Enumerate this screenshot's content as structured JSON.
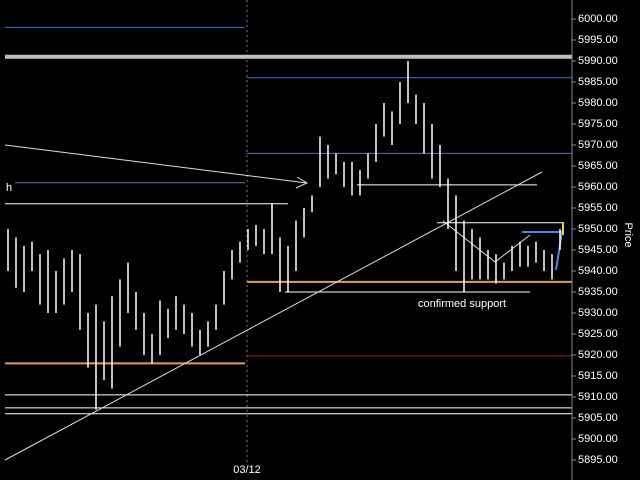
{
  "chart_data": {
    "type": "hl",
    "color": "#ffffff",
    "y_axis_label": "Price",
    "annotations": [
      "h",
      "confirmed support"
    ],
    "categories": [
      null,
      null,
      null,
      null,
      null,
      null,
      null,
      null,
      null,
      null,
      null,
      null,
      null,
      null,
      null,
      null,
      null,
      null,
      null,
      null,
      null,
      null,
      null,
      null,
      null,
      null,
      null,
      null,
      null,
      null,
      "03/12",
      null,
      null,
      null,
      null,
      null,
      null,
      null,
      null,
      null,
      null,
      null,
      null,
      null,
      null,
      null,
      null,
      null,
      null,
      null,
      null,
      null,
      null,
      null,
      null,
      null,
      null,
      null,
      null,
      null,
      null,
      null,
      null,
      null,
      null,
      null,
      null,
      null,
      null,
      null
    ],
    "high": [
      5950,
      5948,
      5946,
      5947,
      5944,
      5945,
      5940,
      5943,
      5945,
      5944,
      5930,
      5932,
      5928,
      5934,
      5938,
      5942,
      5935,
      5930,
      5925,
      5933,
      5931,
      5934,
      5932,
      5930,
      5926,
      5928,
      5932,
      5940,
      5945,
      5947,
      5950,
      5951,
      5950,
      5956,
      5948,
      5946,
      5952,
      5955,
      5958,
      5972,
      5970,
      5968,
      5966,
      5966,
      5964,
      5968,
      5975,
      5980,
      5978,
      5985,
      5990,
      5982,
      5980,
      5975,
      5970,
      5962,
      5958,
      5952,
      5950,
      5948,
      5945,
      5944,
      5942,
      5946,
      5947,
      5946,
      5947,
      5945,
      5944,
      5950
    ],
    "low": [
      5940,
      5936,
      5935,
      5940,
      5932,
      5930,
      5930,
      5932,
      5935,
      5926,
      5917,
      5907,
      5914,
      5912,
      5922,
      5930,
      5926,
      5920,
      5918,
      5920,
      5924,
      5926,
      5925,
      5922,
      5920,
      5922,
      5926,
      5932,
      5938,
      5942,
      5945,
      5946,
      5944,
      5944,
      5935,
      5935,
      5940,
      5948,
      5954,
      5960,
      5962,
      5963,
      5960,
      5958,
      5958,
      5962,
      5966,
      5972,
      5970,
      5975,
      5980,
      5975,
      5968,
      5962,
      5960,
      5950,
      5940,
      5935,
      5938,
      5938,
      5938,
      5937,
      5938,
      5940,
      5941,
      5941,
      5942,
      5940,
      5938,
      5945
    ],
    "levels": [
      {
        "value": 5991,
        "color": "#c0c0c0"
      },
      {
        "value": 5998,
        "color": "#3a6fd8"
      },
      {
        "value": 5986,
        "color": "#3a6fd8"
      },
      {
        "value": 5968,
        "color": "#8060c0"
      },
      {
        "value": 5961,
        "color": "#8060c0"
      },
      {
        "value": 5960.5,
        "color": "#ffffff"
      },
      {
        "value": 5956,
        "color": "#ffffff"
      },
      {
        "value": 5951.5,
        "color": "#ffffff"
      },
      {
        "value": 5937.4,
        "color": "#e0a050"
      },
      {
        "value": 5935,
        "color": "#ffffff"
      },
      {
        "value": 5919.8,
        "color": "#b02020"
      },
      {
        "value": 5918,
        "color": "#e0a050"
      },
      {
        "value": 5910.5,
        "color": "#ffffff"
      },
      {
        "value": 5907.4,
        "color": "#ffffff"
      },
      {
        "value": 5906,
        "color": "#ffffff"
      }
    ],
    "ylim": [
      5895,
      6000
    ],
    "yticks": [
      {
        "value": 5895,
        "label": "5895.00"
      },
      {
        "value": 5900,
        "label": "5900.00"
      },
      {
        "value": 5905,
        "label": "5905.00"
      },
      {
        "value": 5910,
        "label": "5910.00"
      },
      {
        "value": 5915,
        "label": "5915.00"
      },
      {
        "value": 5920,
        "label": "5920.00"
      },
      {
        "value": 5925,
        "label": "5925.00"
      },
      {
        "value": 5930,
        "label": "5930.00"
      },
      {
        "value": 5935,
        "label": "5935.00"
      },
      {
        "value": 5940,
        "label": "5940.00"
      },
      {
        "value": 5945,
        "label": "5945.00"
      },
      {
        "value": 5950,
        "label": "5950.00"
      },
      {
        "value": 5955,
        "label": "5955.00"
      },
      {
        "value": 5960,
        "label": "5960.00"
      },
      {
        "value": 5965,
        "label": "5965.00"
      },
      {
        "value": 5970,
        "label": "5970.00"
      },
      {
        "value": 5975,
        "label": "5975.00"
      },
      {
        "value": 5980,
        "label": "5980.00"
      },
      {
        "value": 5985,
        "label": "5985.00"
      },
      {
        "value": 5990,
        "label": "5990.00"
      },
      {
        "value": 5995,
        "label": "5995.00"
      },
      {
        "value": 6000,
        "label": "6000.00"
      }
    ]
  }
}
